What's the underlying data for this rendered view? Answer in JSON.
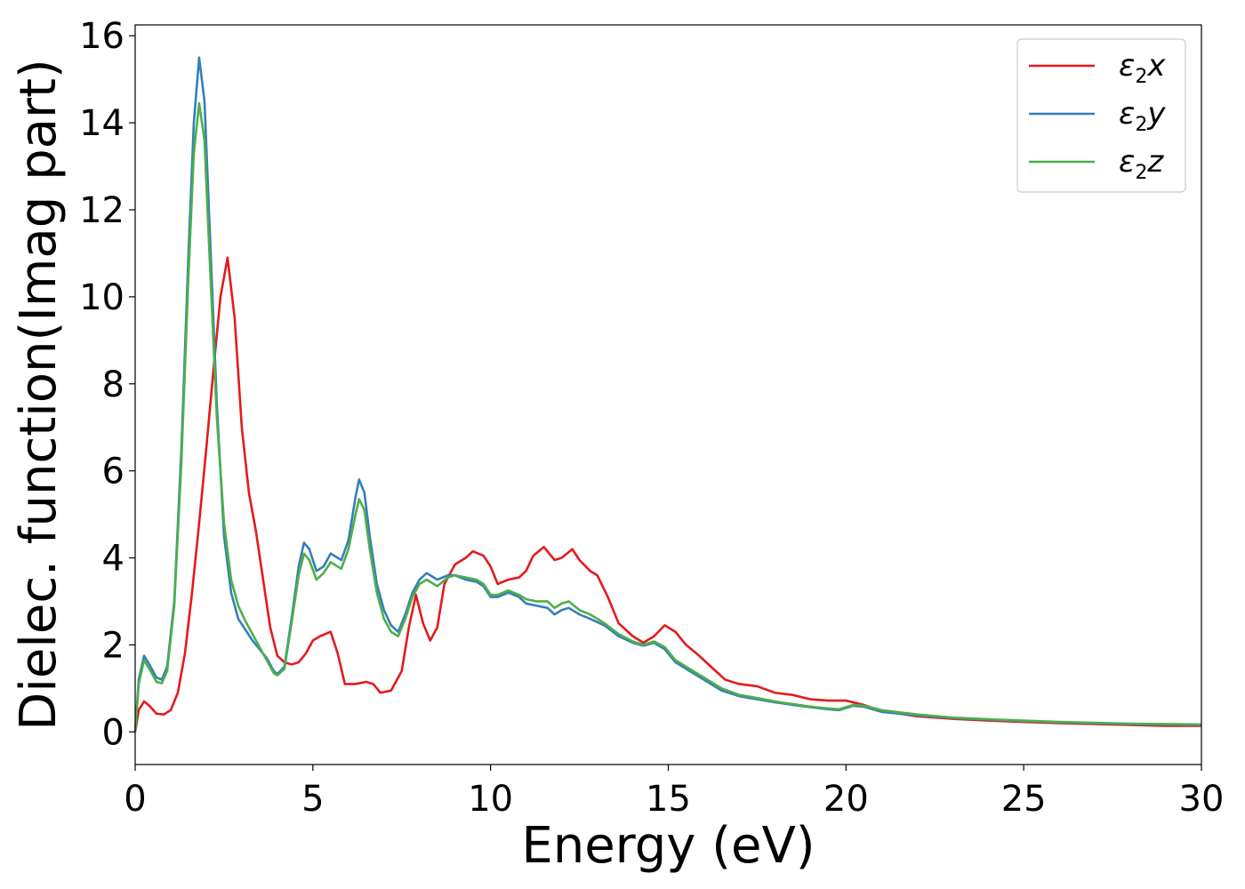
{
  "chart_data": {
    "type": "line",
    "xlabel": "Energy (eV)",
    "ylabel": "Dielec. function(Imag part)",
    "xlim": [
      0,
      30
    ],
    "ylim": [
      -0.75,
      16.25
    ],
    "xticks": [
      0,
      5,
      10,
      15,
      20,
      25,
      30
    ],
    "yticks": [
      0,
      2,
      4,
      6,
      8,
      10,
      12,
      14,
      16
    ],
    "grid": false,
    "legend_position": "top-right",
    "series": [
      {
        "name": "ε2x",
        "legend_main": "ε",
        "legend_sub": "2",
        "legend_tail": "x",
        "color": "#e41a1c",
        "points": [
          [
            0.0,
            0.0
          ],
          [
            0.1,
            0.5
          ],
          [
            0.25,
            0.7
          ],
          [
            0.4,
            0.6
          ],
          [
            0.6,
            0.42
          ],
          [
            0.8,
            0.4
          ],
          [
            1.0,
            0.5
          ],
          [
            1.2,
            0.9
          ],
          [
            1.4,
            1.8
          ],
          [
            1.6,
            3.2
          ],
          [
            1.8,
            4.8
          ],
          [
            2.0,
            6.5
          ],
          [
            2.2,
            8.3
          ],
          [
            2.4,
            10.0
          ],
          [
            2.6,
            10.9
          ],
          [
            2.8,
            9.5
          ],
          [
            3.0,
            7.0
          ],
          [
            3.2,
            5.5
          ],
          [
            3.4,
            4.6
          ],
          [
            3.6,
            3.5
          ],
          [
            3.8,
            2.4
          ],
          [
            4.0,
            1.75
          ],
          [
            4.2,
            1.6
          ],
          [
            4.4,
            1.55
          ],
          [
            4.6,
            1.6
          ],
          [
            4.8,
            1.8
          ],
          [
            5.0,
            2.1
          ],
          [
            5.2,
            2.2
          ],
          [
            5.5,
            2.3
          ],
          [
            5.7,
            1.8
          ],
          [
            5.9,
            1.1
          ],
          [
            6.2,
            1.1
          ],
          [
            6.5,
            1.15
          ],
          [
            6.7,
            1.1
          ],
          [
            6.9,
            0.9
          ],
          [
            7.2,
            0.95
          ],
          [
            7.5,
            1.4
          ],
          [
            7.7,
            2.4
          ],
          [
            7.9,
            3.15
          ],
          [
            8.1,
            2.5
          ],
          [
            8.3,
            2.1
          ],
          [
            8.5,
            2.4
          ],
          [
            8.7,
            3.4
          ],
          [
            9.0,
            3.85
          ],
          [
            9.3,
            4.0
          ],
          [
            9.5,
            4.15
          ],
          [
            9.8,
            4.05
          ],
          [
            10.0,
            3.8
          ],
          [
            10.2,
            3.4
          ],
          [
            10.5,
            3.5
          ],
          [
            10.8,
            3.55
          ],
          [
            11.0,
            3.7
          ],
          [
            11.2,
            4.05
          ],
          [
            11.5,
            4.25
          ],
          [
            11.8,
            3.95
          ],
          [
            12.0,
            4.0
          ],
          [
            12.3,
            4.2
          ],
          [
            12.5,
            3.95
          ],
          [
            12.8,
            3.7
          ],
          [
            13.0,
            3.6
          ],
          [
            13.3,
            3.1
          ],
          [
            13.6,
            2.5
          ],
          [
            14.0,
            2.2
          ],
          [
            14.3,
            2.05
          ],
          [
            14.6,
            2.2
          ],
          [
            14.9,
            2.45
          ],
          [
            15.2,
            2.3
          ],
          [
            15.5,
            2.0
          ],
          [
            15.8,
            1.8
          ],
          [
            16.2,
            1.5
          ],
          [
            16.6,
            1.2
          ],
          [
            17.0,
            1.1
          ],
          [
            17.5,
            1.05
          ],
          [
            18.0,
            0.9
          ],
          [
            18.5,
            0.85
          ],
          [
            19.0,
            0.75
          ],
          [
            19.5,
            0.72
          ],
          [
            20.0,
            0.72
          ],
          [
            20.5,
            0.62
          ],
          [
            21.0,
            0.48
          ],
          [
            22.0,
            0.36
          ],
          [
            23.0,
            0.3
          ],
          [
            24.0,
            0.26
          ],
          [
            25.0,
            0.23
          ],
          [
            26.0,
            0.2
          ],
          [
            27.0,
            0.18
          ],
          [
            28.0,
            0.16
          ],
          [
            29.0,
            0.14
          ],
          [
            30.0,
            0.14
          ]
        ]
      },
      {
        "name": "ε2y",
        "legend_main": "ε",
        "legend_sub": "2",
        "legend_tail": "y",
        "color": "#377eb8",
        "points": [
          [
            0.0,
            0.0
          ],
          [
            0.1,
            1.2
          ],
          [
            0.25,
            1.75
          ],
          [
            0.4,
            1.55
          ],
          [
            0.6,
            1.25
          ],
          [
            0.75,
            1.2
          ],
          [
            0.9,
            1.5
          ],
          [
            1.1,
            3.0
          ],
          [
            1.3,
            6.5
          ],
          [
            1.5,
            11.0
          ],
          [
            1.65,
            14.0
          ],
          [
            1.8,
            15.5
          ],
          [
            1.95,
            14.5
          ],
          [
            2.1,
            11.5
          ],
          [
            2.3,
            7.5
          ],
          [
            2.5,
            4.5
          ],
          [
            2.7,
            3.2
          ],
          [
            2.9,
            2.6
          ],
          [
            3.1,
            2.35
          ],
          [
            3.3,
            2.1
          ],
          [
            3.5,
            1.9
          ],
          [
            3.7,
            1.7
          ],
          [
            3.9,
            1.4
          ],
          [
            4.0,
            1.33
          ],
          [
            4.2,
            1.5
          ],
          [
            4.4,
            2.6
          ],
          [
            4.6,
            3.8
          ],
          [
            4.75,
            4.35
          ],
          [
            4.9,
            4.2
          ],
          [
            5.1,
            3.7
          ],
          [
            5.3,
            3.8
          ],
          [
            5.5,
            4.1
          ],
          [
            5.8,
            3.95
          ],
          [
            6.0,
            4.4
          ],
          [
            6.2,
            5.4
          ],
          [
            6.3,
            5.8
          ],
          [
            6.45,
            5.5
          ],
          [
            6.6,
            4.5
          ],
          [
            6.8,
            3.4
          ],
          [
            7.0,
            2.8
          ],
          [
            7.2,
            2.45
          ],
          [
            7.4,
            2.3
          ],
          [
            7.6,
            2.7
          ],
          [
            7.8,
            3.2
          ],
          [
            8.0,
            3.5
          ],
          [
            8.2,
            3.65
          ],
          [
            8.5,
            3.5
          ],
          [
            8.8,
            3.6
          ],
          [
            9.0,
            3.6
          ],
          [
            9.3,
            3.5
          ],
          [
            9.6,
            3.45
          ],
          [
            9.8,
            3.35
          ],
          [
            10.0,
            3.1
          ],
          [
            10.2,
            3.1
          ],
          [
            10.5,
            3.2
          ],
          [
            10.8,
            3.1
          ],
          [
            11.0,
            2.95
          ],
          [
            11.3,
            2.9
          ],
          [
            11.6,
            2.85
          ],
          [
            11.8,
            2.7
          ],
          [
            12.0,
            2.8
          ],
          [
            12.2,
            2.85
          ],
          [
            12.5,
            2.7
          ],
          [
            12.8,
            2.6
          ],
          [
            13.2,
            2.45
          ],
          [
            13.6,
            2.2
          ],
          [
            14.0,
            2.05
          ],
          [
            14.3,
            1.98
          ],
          [
            14.6,
            2.05
          ],
          [
            14.9,
            1.9
          ],
          [
            15.2,
            1.6
          ],
          [
            15.6,
            1.4
          ],
          [
            16.0,
            1.2
          ],
          [
            16.5,
            0.95
          ],
          [
            17.0,
            0.82
          ],
          [
            17.5,
            0.75
          ],
          [
            18.0,
            0.68
          ],
          [
            18.5,
            0.62
          ],
          [
            19.0,
            0.57
          ],
          [
            19.5,
            0.52
          ],
          [
            19.8,
            0.5
          ],
          [
            20.2,
            0.6
          ],
          [
            20.5,
            0.58
          ],
          [
            21.0,
            0.46
          ],
          [
            22.0,
            0.38
          ],
          [
            23.0,
            0.32
          ],
          [
            24.0,
            0.28
          ],
          [
            25.0,
            0.25
          ],
          [
            26.0,
            0.22
          ],
          [
            27.0,
            0.2
          ],
          [
            28.0,
            0.18
          ],
          [
            29.0,
            0.17
          ],
          [
            30.0,
            0.16
          ]
        ]
      },
      {
        "name": "ε2z",
        "legend_main": "ε",
        "legend_sub": "2",
        "legend_tail": "z",
        "color": "#4daf4a",
        "points": [
          [
            0.0,
            0.0
          ],
          [
            0.1,
            1.1
          ],
          [
            0.25,
            1.65
          ],
          [
            0.4,
            1.45
          ],
          [
            0.6,
            1.15
          ],
          [
            0.75,
            1.12
          ],
          [
            0.9,
            1.4
          ],
          [
            1.1,
            2.9
          ],
          [
            1.3,
            6.2
          ],
          [
            1.5,
            10.5
          ],
          [
            1.65,
            13.3
          ],
          [
            1.8,
            14.45
          ],
          [
            1.95,
            13.6
          ],
          [
            2.1,
            10.8
          ],
          [
            2.3,
            7.2
          ],
          [
            2.5,
            4.8
          ],
          [
            2.7,
            3.5
          ],
          [
            2.9,
            2.9
          ],
          [
            3.1,
            2.55
          ],
          [
            3.3,
            2.25
          ],
          [
            3.5,
            1.95
          ],
          [
            3.7,
            1.65
          ],
          [
            3.9,
            1.35
          ],
          [
            4.0,
            1.3
          ],
          [
            4.2,
            1.45
          ],
          [
            4.4,
            2.5
          ],
          [
            4.6,
            3.6
          ],
          [
            4.75,
            4.1
          ],
          [
            4.9,
            3.95
          ],
          [
            5.1,
            3.5
          ],
          [
            5.3,
            3.65
          ],
          [
            5.5,
            3.9
          ],
          [
            5.8,
            3.75
          ],
          [
            6.0,
            4.2
          ],
          [
            6.2,
            5.0
          ],
          [
            6.3,
            5.35
          ],
          [
            6.45,
            5.1
          ],
          [
            6.6,
            4.2
          ],
          [
            6.8,
            3.2
          ],
          [
            7.0,
            2.6
          ],
          [
            7.2,
            2.3
          ],
          [
            7.4,
            2.2
          ],
          [
            7.6,
            2.6
          ],
          [
            7.8,
            3.1
          ],
          [
            8.0,
            3.4
          ],
          [
            8.2,
            3.5
          ],
          [
            8.5,
            3.35
          ],
          [
            8.8,
            3.55
          ],
          [
            9.0,
            3.6
          ],
          [
            9.3,
            3.55
          ],
          [
            9.6,
            3.5
          ],
          [
            9.8,
            3.4
          ],
          [
            10.0,
            3.15
          ],
          [
            10.2,
            3.15
          ],
          [
            10.5,
            3.25
          ],
          [
            10.8,
            3.15
          ],
          [
            11.0,
            3.05
          ],
          [
            11.3,
            3.0
          ],
          [
            11.6,
            3.0
          ],
          [
            11.8,
            2.85
          ],
          [
            12.0,
            2.95
          ],
          [
            12.2,
            3.0
          ],
          [
            12.5,
            2.8
          ],
          [
            12.8,
            2.7
          ],
          [
            13.2,
            2.5
          ],
          [
            13.6,
            2.25
          ],
          [
            14.0,
            2.08
          ],
          [
            14.3,
            2.0
          ],
          [
            14.6,
            2.08
          ],
          [
            14.9,
            1.95
          ],
          [
            15.2,
            1.65
          ],
          [
            15.6,
            1.45
          ],
          [
            16.0,
            1.25
          ],
          [
            16.5,
            1.0
          ],
          [
            17.0,
            0.85
          ],
          [
            17.5,
            0.78
          ],
          [
            18.0,
            0.7
          ],
          [
            18.5,
            0.64
          ],
          [
            19.0,
            0.58
          ],
          [
            19.5,
            0.54
          ],
          [
            19.8,
            0.52
          ],
          [
            20.2,
            0.62
          ],
          [
            20.5,
            0.6
          ],
          [
            21.0,
            0.5
          ],
          [
            22.0,
            0.4
          ],
          [
            23.0,
            0.33
          ],
          [
            24.0,
            0.29
          ],
          [
            25.0,
            0.26
          ],
          [
            26.0,
            0.23
          ],
          [
            27.0,
            0.21
          ],
          [
            28.0,
            0.19
          ],
          [
            29.0,
            0.18
          ],
          [
            30.0,
            0.17
          ]
        ]
      }
    ]
  }
}
